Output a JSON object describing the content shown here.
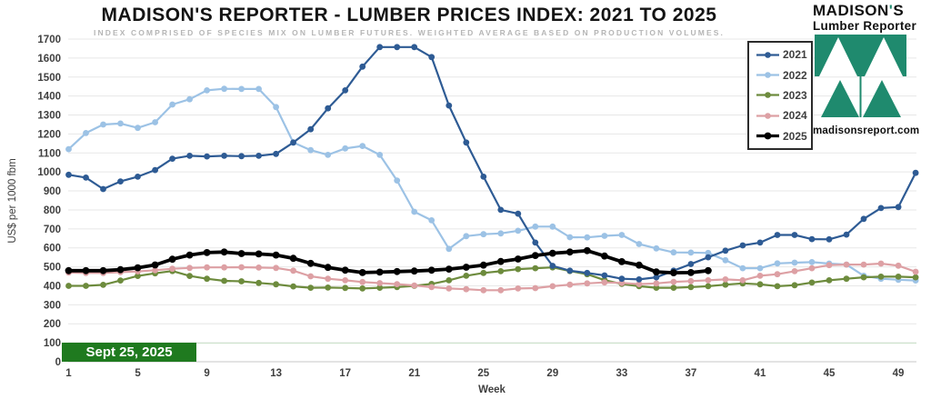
{
  "title": "MADISON'S REPORTER - LUMBER PRICES INDEX: 2021 TO 2025",
  "subtitle": "INDEX COMPRISED OF SPECIES MIX ON LUMBER FUTURES. WEIGHTED AVERAGE BASED ON PRODUCTION VOLUMES.",
  "logo": {
    "name_part1": "MADISON",
    "apostrophe": "'",
    "name_part2": "S",
    "tagline": "Lumber Reporter",
    "website": "madisonsreport.com",
    "green": "#1f8a6e"
  },
  "date_badge": {
    "text": "Sept 25, 2025",
    "bg": "#1f7a1f",
    "line_color": "#cfe3cd"
  },
  "chart_data": {
    "type": "line",
    "title": "MADISON'S REPORTER - LUMBER PRICES INDEX: 2021 TO 2025",
    "x_label": "Week",
    "y_label": "US$ per 1000 fbm",
    "x_ticks": [
      1,
      5,
      9,
      13,
      17,
      21,
      25,
      29,
      33,
      37,
      41,
      45,
      49
    ],
    "y_ticks": [
      0,
      100,
      200,
      300,
      400,
      500,
      600,
      700,
      800,
      900,
      1000,
      1100,
      1200,
      1300,
      1400,
      1500,
      1600,
      1700
    ],
    "x_range": [
      1,
      50
    ],
    "y_range": [
      0,
      1700
    ],
    "grid": true,
    "legend_position": "top-right",
    "series": [
      {
        "name": "2022",
        "color": "#9cc2e5",
        "width": 2.2,
        "marker": 3.4,
        "start_week": 1,
        "values": [
          1120,
          1205,
          1250,
          1255,
          1232,
          1262,
          1355,
          1383,
          1430,
          1438,
          1437,
          1437,
          1342,
          1155,
          1115,
          1090,
          1124,
          1137,
          1090,
          955,
          790,
          745,
          595,
          662,
          672,
          676,
          690,
          712,
          712,
          656,
          655,
          663,
          668,
          620,
          597,
          576,
          575,
          573,
          535,
          493,
          493,
          518,
          522,
          525,
          517,
          512,
          453,
          437,
          432,
          428
        ]
      },
      {
        "name": "2023",
        "color": "#6d8b3d",
        "width": 2.2,
        "marker": 3.4,
        "start_week": 1,
        "values": [
          400,
          400,
          405,
          428,
          452,
          466,
          478,
          452,
          437,
          426,
          424,
          415,
          408,
          397,
          390,
          391,
          389,
          386,
          390,
          393,
          400,
          410,
          429,
          453,
          468,
          477,
          488,
          493,
          497,
          478,
          461,
          430,
          410,
          398,
          390,
          390,
          393,
          398,
          406,
          413,
          408,
          398,
          403,
          417,
          429,
          437,
          445,
          448,
          448,
          445
        ]
      },
      {
        "name": "2024",
        "color": "#dda0a4",
        "width": 2.2,
        "marker": 3.4,
        "start_week": 1,
        "values": [
          470,
          468,
          468,
          472,
          476,
          482,
          490,
          494,
          497,
          497,
          498,
          496,
          494,
          480,
          450,
          437,
          429,
          420,
          414,
          409,
          402,
          393,
          386,
          382,
          377,
          377,
          386,
          388,
          398,
          406,
          413,
          418,
          415,
          409,
          413,
          421,
          425,
          429,
          434,
          429,
          453,
          461,
          477,
          493,
          509,
          512,
          512,
          517,
          506,
          474
        ]
      },
      {
        "name": "2021",
        "color": "#2e5b94",
        "width": 2.2,
        "marker": 3.4,
        "start_week": 1,
        "values": [
          985,
          970,
          910,
          950,
          975,
          1010,
          1070,
          1085,
          1082,
          1085,
          1083,
          1085,
          1095,
          1155,
          1225,
          1335,
          1430,
          1555,
          1658,
          1658,
          1658,
          1605,
          1350,
          1155,
          975,
          800,
          780,
          628,
          505,
          480,
          468,
          455,
          437,
          434,
          445,
          480,
          515,
          550,
          585,
          613,
          628,
          668,
          668,
          646,
          645,
          670,
          753,
          810,
          815,
          995
        ]
      },
      {
        "name": "2025",
        "color": "#000000",
        "width": 3.8,
        "marker": 3.9,
        "start_week": 1,
        "values": [
          480,
          480,
          480,
          485,
          495,
          510,
          540,
          562,
          575,
          578,
          570,
          568,
          562,
          545,
          518,
          497,
          482,
          470,
          472,
          475,
          478,
          482,
          488,
          498,
          509,
          528,
          541,
          560,
          572,
          578,
          585,
          557,
          527,
          509,
          473,
          469,
          470,
          480
        ]
      }
    ],
    "legend_order": [
      "2021",
      "2022",
      "2023",
      "2024",
      "2025"
    ]
  }
}
